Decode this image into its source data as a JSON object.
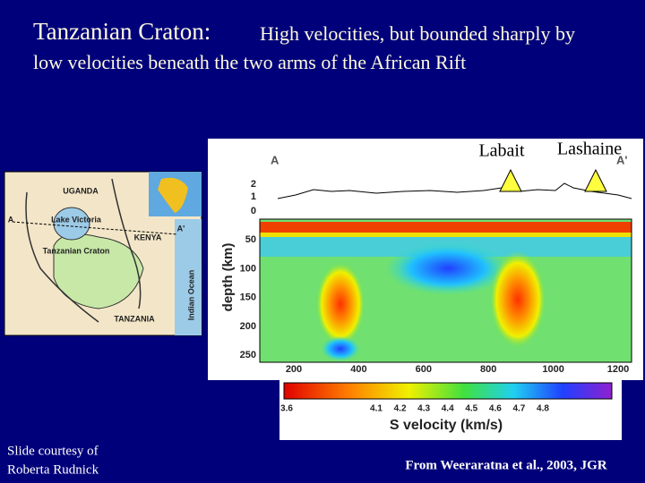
{
  "title": {
    "lead": "Tanzanian Craton:",
    "rest": "High velocities, but bounded sharply by",
    "line2": "low velocities beneath the two arms of the African Rift"
  },
  "map": {
    "labels": [
      "UGANDA",
      "KENYA",
      "TANZANIA",
      "Lake Victoria",
      "Tanzanian Craton",
      "Indian Ocean",
      "A",
      "A'"
    ]
  },
  "section": {
    "stations": [
      "Labait",
      "Lashaine"
    ],
    "ends": [
      "A",
      "A'"
    ],
    "ylabel": "depth (km)",
    "topo_ticks": [
      2,
      1,
      0
    ],
    "yticks": [
      50,
      100,
      150,
      200,
      250
    ],
    "xticks": [
      200,
      400,
      600,
      800,
      1000,
      1200
    ]
  },
  "colorbar": {
    "label": "S velocity (km/s)",
    "ticks": [
      3.6,
      4.1,
      4.2,
      4.3,
      4.4,
      4.5,
      4.6,
      4.7,
      4.8
    ]
  },
  "credit": [
    "Slide courtesy of",
    "Roberta Rudnick"
  ],
  "source": "From Weeraratna et al., 2003, JGR"
}
